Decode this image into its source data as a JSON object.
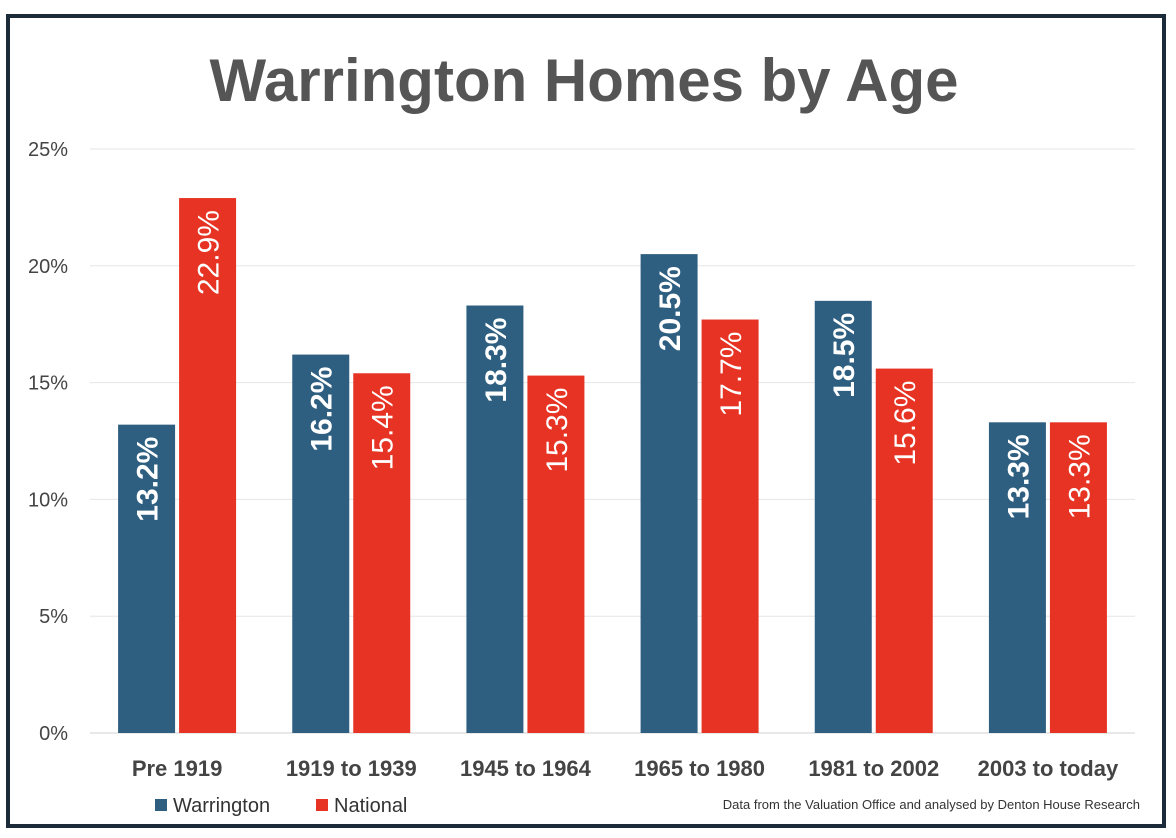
{
  "chart_data": {
    "type": "bar",
    "title": "Warrington Homes by Age",
    "categories": [
      "Pre 1919",
      "1919 to 1939",
      "1945 to 1964",
      "1965 to 1980",
      "1981 to 2002",
      "2003 to today"
    ],
    "series": [
      {
        "name": "Warrington",
        "color": "#2e5f80",
        "values": [
          13.2,
          16.2,
          18.3,
          20.5,
          18.5,
          13.3
        ],
        "labels": [
          "13.2%",
          "16.2%",
          "18.3%",
          "20.5%",
          "18.5%",
          "13.3%"
        ]
      },
      {
        "name": "National",
        "color": "#e63323",
        "values": [
          22.9,
          15.4,
          15.3,
          17.7,
          15.6,
          13.3
        ],
        "labels": [
          "22.9%",
          "15.4%",
          "15.3%",
          "17.7%",
          "15.6%",
          "13.3%"
        ]
      }
    ],
    "ylim": [
      0,
      25
    ],
    "yticks": [
      0,
      5,
      10,
      15,
      20,
      25
    ],
    "ytick_labels": [
      "0%",
      "5%",
      "10%",
      "15%",
      "20%",
      "25%"
    ],
    "xlabel": "",
    "ylabel": "",
    "grid": true,
    "legend": "bottom-left",
    "source_note": "Data from the Valuation Office and analysed by Denton House Research"
  }
}
